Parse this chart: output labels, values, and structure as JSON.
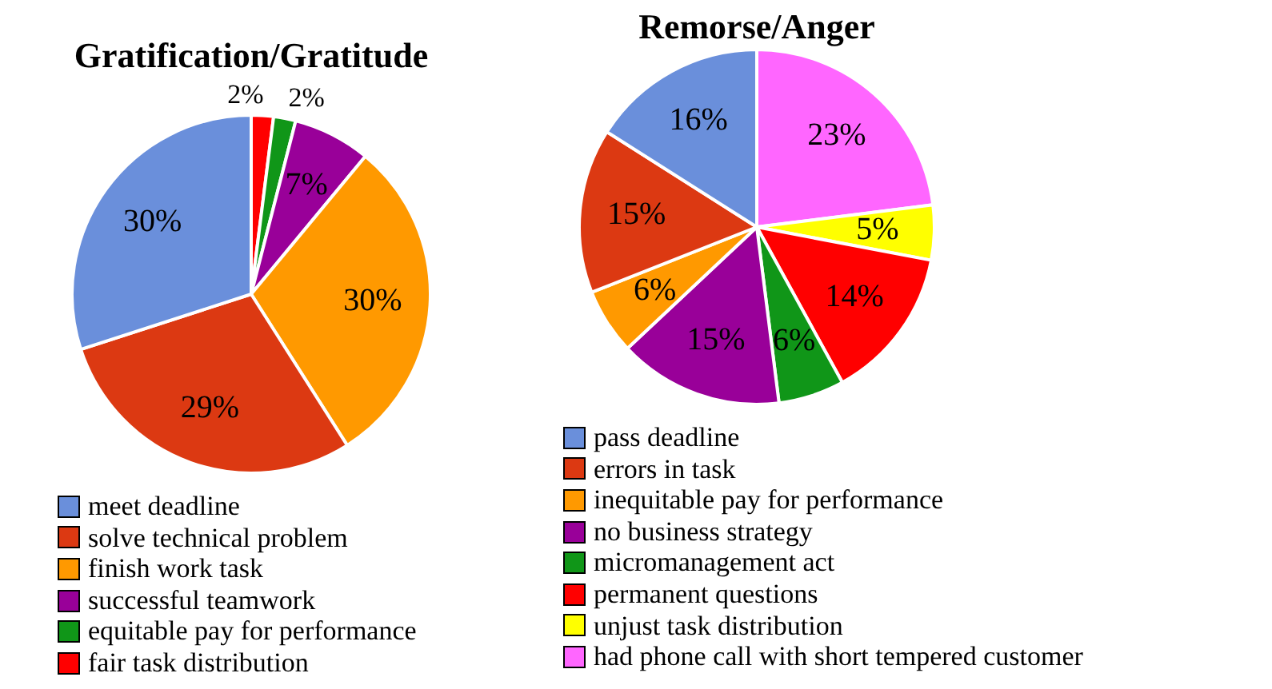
{
  "chart_data": [
    {
      "type": "pie",
      "title": "Gratification/Gratitude",
      "categories": [
        "meet deadline",
        "solve technical problem",
        "finish work task",
        "successful teamwork",
        "equitable pay for performance",
        "fair task distribution"
      ],
      "values": [
        30,
        29,
        30,
        7,
        2,
        2
      ],
      "value_labels": [
        "30%",
        "29%",
        "30%",
        "7%",
        "2%",
        "2%"
      ],
      "colors": [
        "#6a8fdb",
        "#dc3912",
        "#ff9900",
        "#990099",
        "#109618",
        "#ff0000"
      ],
      "legend": "bottom"
    },
    {
      "type": "pie",
      "title": "Remorse/Anger",
      "categories": [
        "pass deadline",
        "errors in task",
        "inequitable pay for performance",
        "no business strategy",
        "micromanagement act",
        "permanent questions",
        "unjust task distribution",
        "had phone call with short tempered customer"
      ],
      "values": [
        16,
        15,
        6,
        15,
        6,
        14,
        5,
        23
      ],
      "value_labels": [
        "16%",
        "15%",
        "6%",
        "15%",
        "6%",
        "14%",
        "5%",
        "23%"
      ],
      "colors": [
        "#6a8fdb",
        "#dc3912",
        "#ff9900",
        "#990099",
        "#109618",
        "#ff0000",
        "#ffff00",
        "#ff66ff"
      ],
      "legend": "bottom"
    }
  ]
}
